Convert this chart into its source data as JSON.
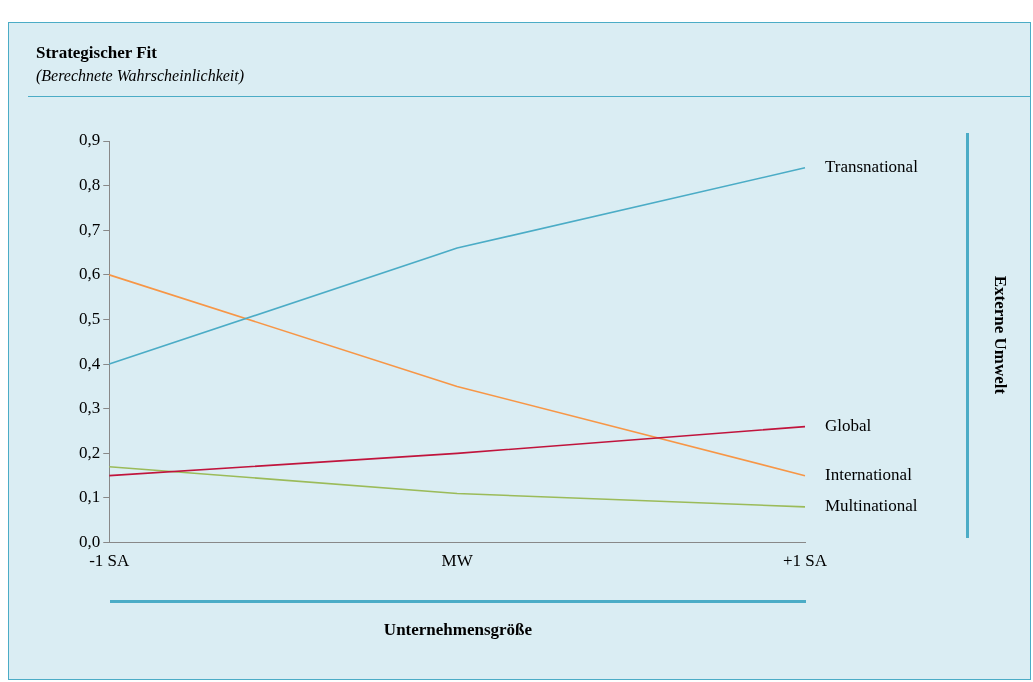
{
  "chart_data": {
    "type": "line",
    "title": "Strategischer Fit",
    "subtitle": "(Berechnete Wahrscheinlichkeit)",
    "xlabel": "Unternehmensgröße",
    "legend_title": "Externe Umwelt",
    "categories": [
      "-1 SA",
      "MW",
      "+1 SA"
    ],
    "series": [
      {
        "name": "Transnational",
        "color": "#4bacc6",
        "values": [
          0.4,
          0.66,
          0.84
        ]
      },
      {
        "name": "Global",
        "color": "#c0143c",
        "values": [
          0.15,
          0.2,
          0.26
        ]
      },
      {
        "name": "International",
        "color": "#f79646",
        "values": [
          0.6,
          0.35,
          0.15
        ]
      },
      {
        "name": "Multinational",
        "color": "#9bbb59",
        "values": [
          0.17,
          0.11,
          0.08
        ]
      }
    ],
    "ylim": [
      0,
      0.9
    ],
    "yticks": [
      {
        "value": 0,
        "label": "0,0"
      },
      {
        "value": 0.1,
        "label": "0,1"
      },
      {
        "value": 0.2,
        "label": "0,2"
      },
      {
        "value": 0.3,
        "label": "0,3"
      },
      {
        "value": 0.4,
        "label": "0,4"
      },
      {
        "value": 0.5,
        "label": "0,5"
      },
      {
        "value": 0.6,
        "label": "0,6"
      },
      {
        "value": 0.7,
        "label": "0,7"
      },
      {
        "value": 0.8,
        "label": "0,8"
      },
      {
        "value": 0.9,
        "label": "0,9"
      }
    ],
    "grid": false,
    "legend": false,
    "marker": "none",
    "line_style": "solid"
  }
}
